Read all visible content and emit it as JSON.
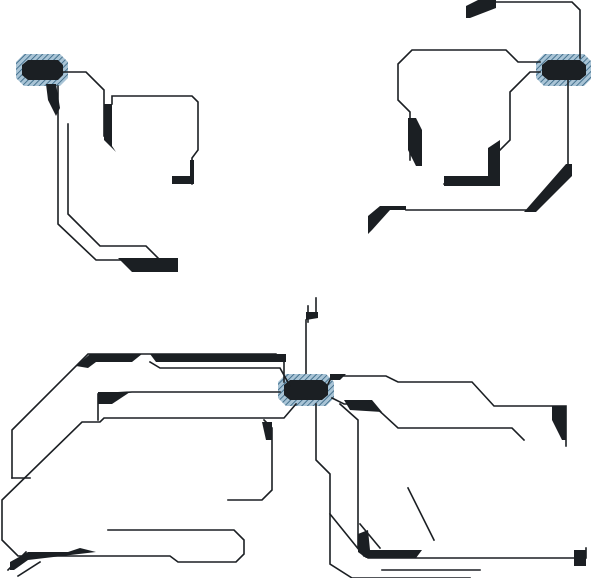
{
  "colors": {
    "background": "#ffffff",
    "trace": "#1b1f23",
    "pad": "#1b1f23",
    "pad_halo": "#7ea6bf",
    "pad_halo_stripe": "#2f5f7e"
  },
  "clusters": [
    {
      "name": "top-left-trace-cluster",
      "pad": "pad-top-left"
    },
    {
      "name": "top-right-trace-cluster",
      "pad": "pad-top-right"
    },
    {
      "name": "bottom-center-trace-cluster",
      "pad": "pad-center"
    }
  ]
}
